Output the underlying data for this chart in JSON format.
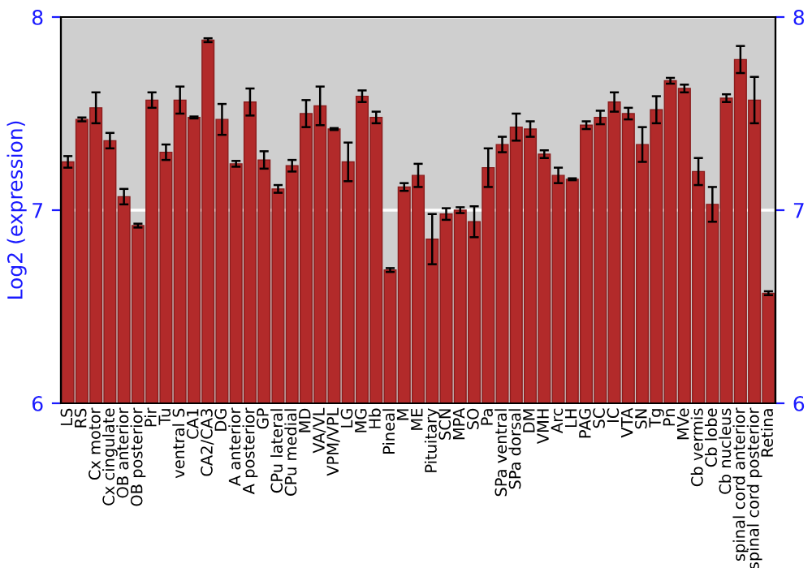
{
  "chart_data": {
    "type": "bar",
    "ylabel": "Log2 (expression)",
    "categories": [
      "LS",
      "RS",
      "Cx motor",
      "Cx cingulate",
      "OB anterior",
      "OB posterior",
      "Pir",
      "Tu",
      "ventral S",
      "CA1",
      "CA2/CA3",
      "DG",
      "A anterior",
      "A posterior",
      "GP",
      "CPu lateral",
      "CPu medial",
      "MD",
      "VA/VL",
      "VPM/VPL",
      "LG",
      "MG",
      "Hb",
      "Pineal",
      "M",
      "ME",
      "Pituitary",
      "SCN",
      "MPA",
      "SO",
      "Pa",
      "SPa ventral",
      "SPa dorsal",
      "DM",
      "VMH",
      "Arc",
      "LH",
      "PAG",
      "SC",
      "IC",
      "VTA",
      "SN",
      "Tg",
      "Pn",
      "MVe",
      "Cb vermis",
      "Cb lobe",
      "Cb nucleus",
      "spinal cord anterior",
      "spinal cord posterior",
      "Retina"
    ],
    "values": [
      7.25,
      7.47,
      7.53,
      7.36,
      7.07,
      6.92,
      7.57,
      7.3,
      7.57,
      7.48,
      7.88,
      7.47,
      7.24,
      7.56,
      7.26,
      7.11,
      7.23,
      7.5,
      7.54,
      7.42,
      7.25,
      7.59,
      7.48,
      6.69,
      7.12,
      7.18,
      6.85,
      6.98,
      7.0,
      6.94,
      7.22,
      7.34,
      7.43,
      7.42,
      7.29,
      7.18,
      7.16,
      7.44,
      7.48,
      7.56,
      7.5,
      7.34,
      7.52,
      7.67,
      7.63,
      7.2,
      7.03,
      7.58,
      7.78,
      7.57,
      6.57
    ],
    "errors": [
      0.03,
      0.01,
      0.08,
      0.04,
      0.04,
      0.01,
      0.04,
      0.04,
      0.07,
      0.005,
      0.01,
      0.08,
      0.015,
      0.07,
      0.045,
      0.02,
      0.03,
      0.07,
      0.1,
      0.005,
      0.1,
      0.03,
      0.03,
      0.01,
      0.02,
      0.06,
      0.13,
      0.03,
      0.015,
      0.08,
      0.1,
      0.04,
      0.07,
      0.04,
      0.02,
      0.04,
      0.005,
      0.02,
      0.035,
      0.05,
      0.03,
      0.09,
      0.07,
      0.015,
      0.02,
      0.07,
      0.09,
      0.02,
      0.07,
      0.12,
      0.01
    ],
    "color": "#b22a2a",
    "ylim": [
      6,
      8
    ],
    "yticks": [
      6,
      7,
      8
    ],
    "y2lim": [
      6,
      8
    ],
    "y2ticks": [
      6,
      7,
      8
    ],
    "grid": "y"
  }
}
